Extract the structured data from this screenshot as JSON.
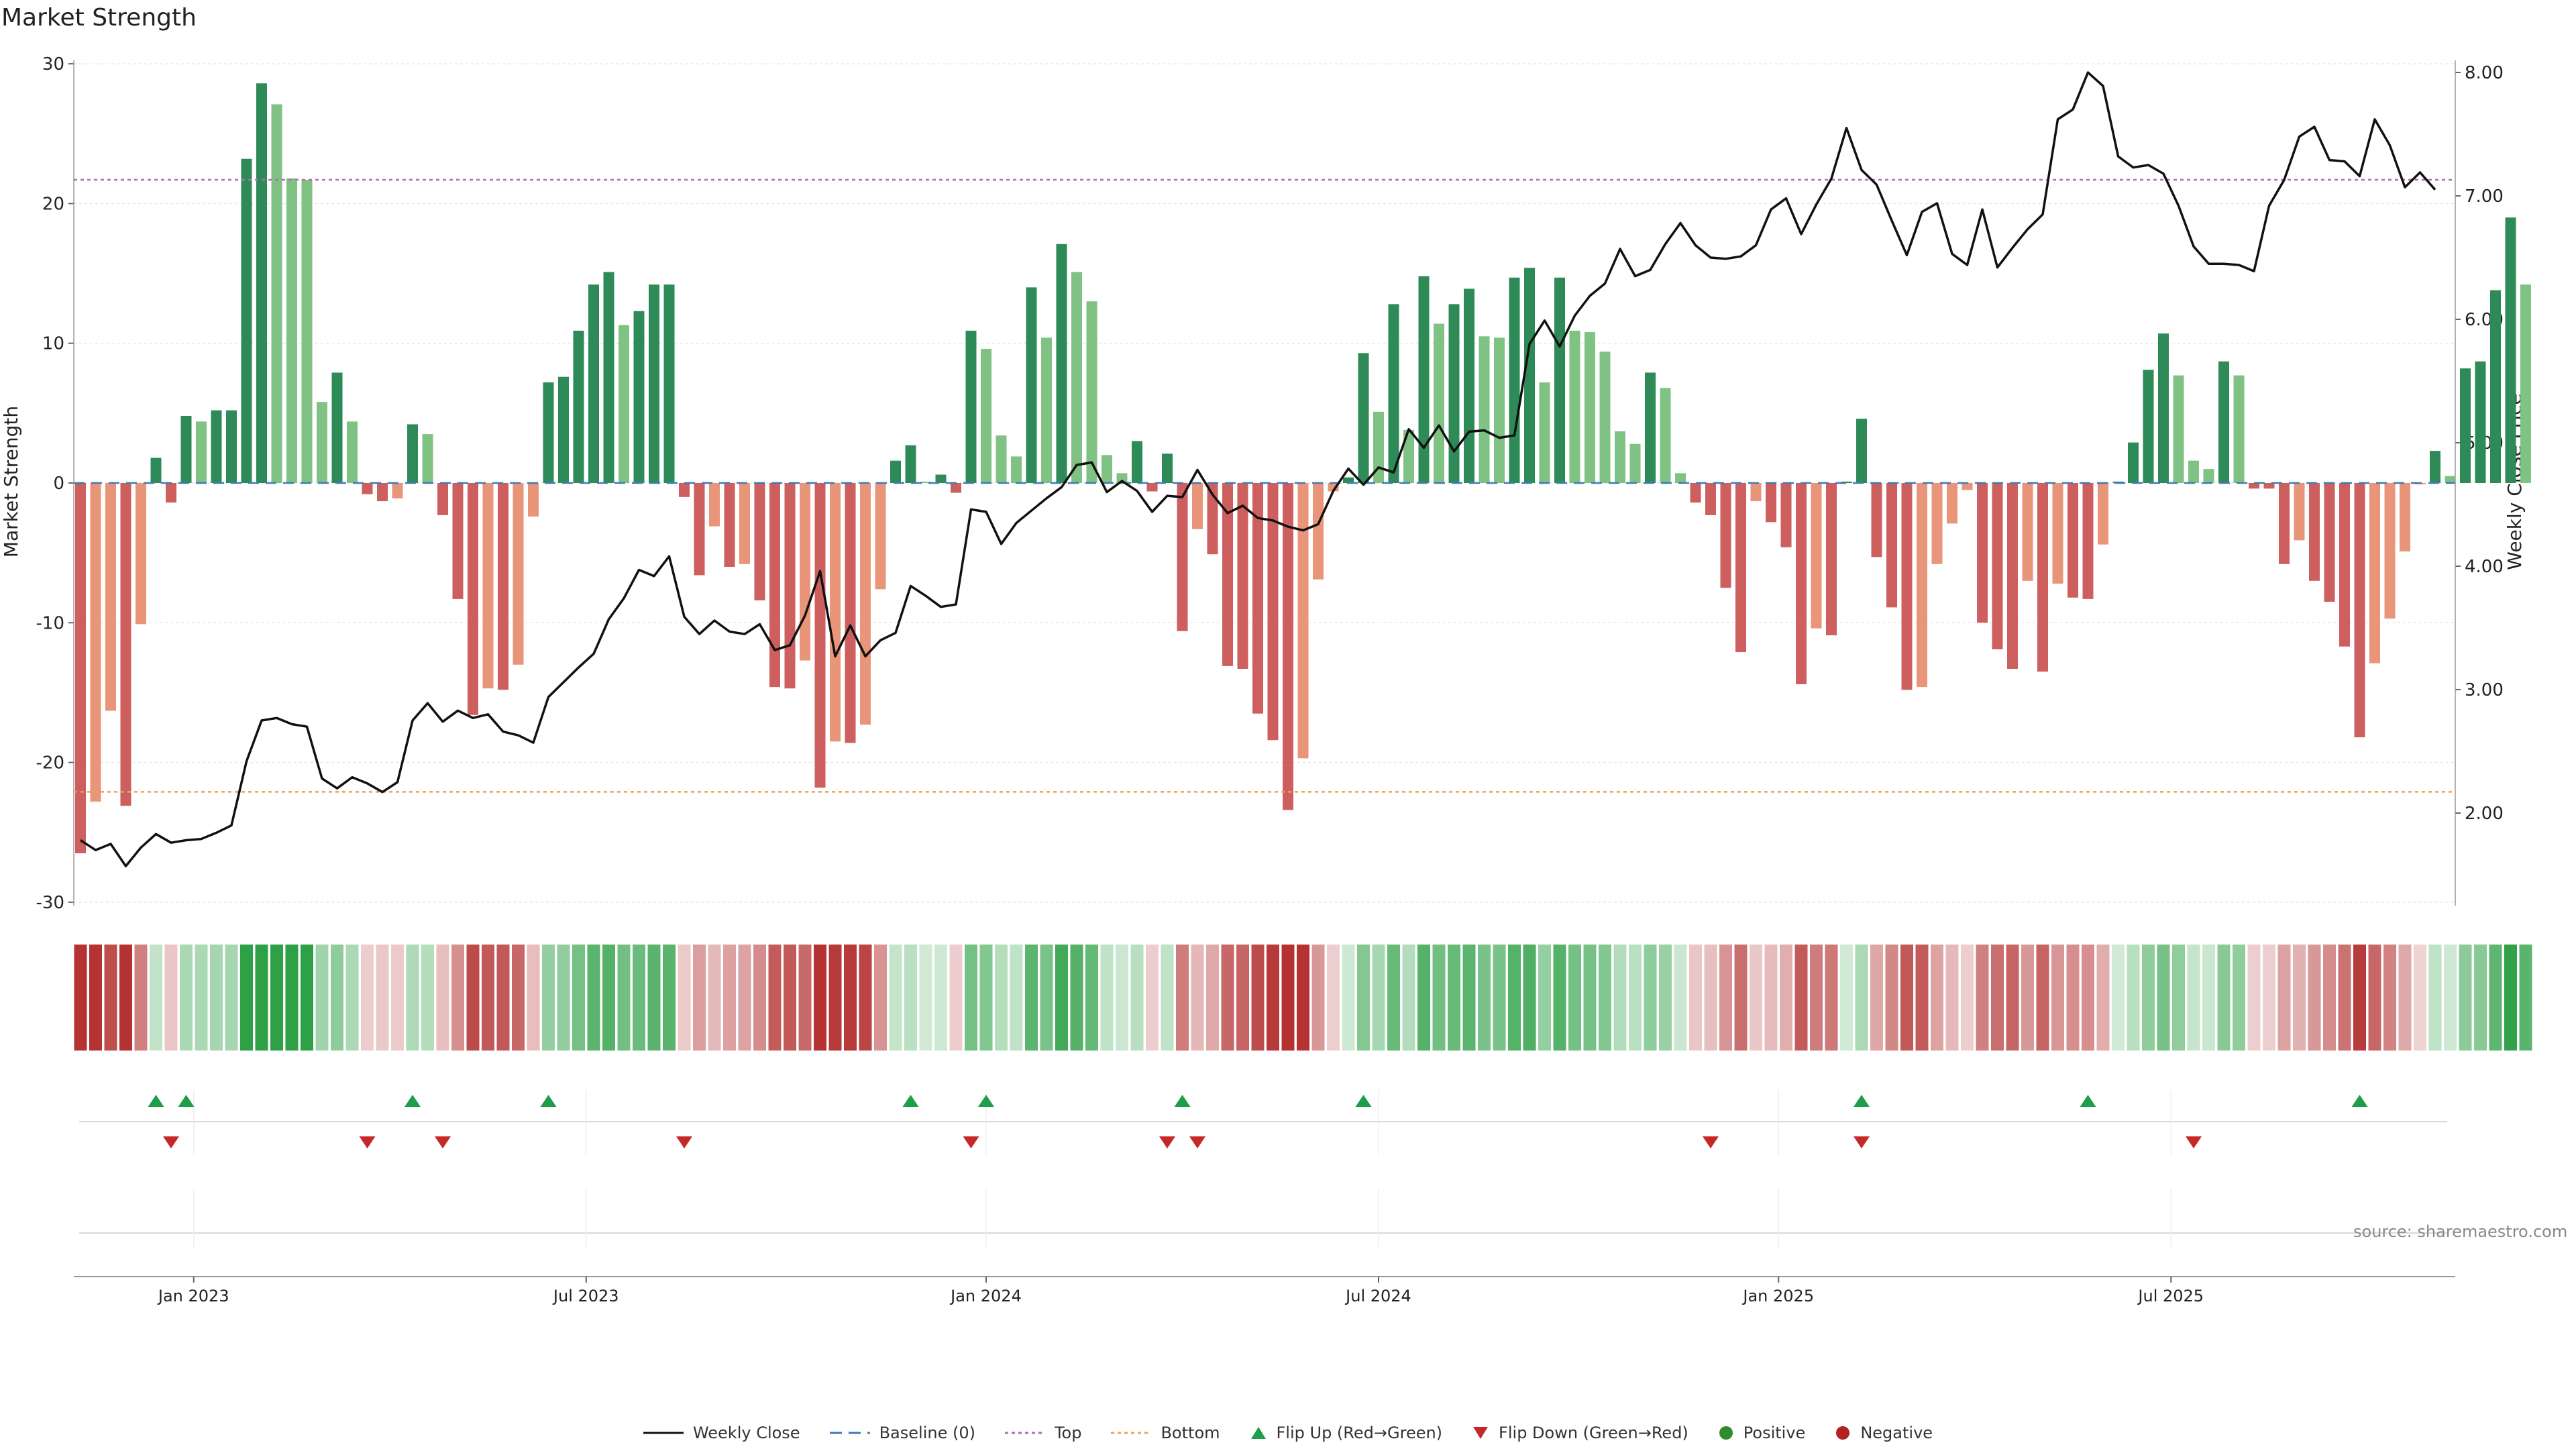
{
  "chart_data": {
    "title": "Market Strength",
    "type": "bar",
    "left_axis": {
      "label": "Market Strength",
      "ylim": [
        -30,
        30
      ],
      "ticks": [
        30,
        20,
        10,
        0,
        -10,
        -20,
        -30
      ]
    },
    "right_axis": {
      "label": "Weekly Close Price",
      "ylim": [
        1.0,
        8.0
      ],
      "ticks": [
        "8.00",
        "7.00",
        "6.00",
        "5.00",
        "4.00",
        "3.00",
        "2.00"
      ]
    },
    "x_ticks": [
      {
        "label": "Jan 2023",
        "week": 7.5
      },
      {
        "label": "Jul 2023",
        "week": 33.5
      },
      {
        "label": "Jan 2024",
        "week": 60
      },
      {
        "label": "Jul 2024",
        "week": 86
      },
      {
        "label": "Jan 2025",
        "week": 112.5
      },
      {
        "label": "Jul 2025",
        "week": 138.5
      }
    ],
    "reference_lines": {
      "top": 21.7,
      "bottom": -22.1,
      "baseline": 0
    },
    "strength": [
      -26.5,
      -22.8,
      -16.3,
      -23.1,
      -10.1,
      1.8,
      -1.4,
      4.8,
      4.4,
      5.2,
      5.2,
      23.2,
      28.6,
      27.1,
      21.8,
      21.7,
      5.8,
      7.9,
      4.4,
      -0.8,
      -1.3,
      -1.1,
      4.2,
      3.5,
      -2.3,
      -8.3,
      -16.6,
      -14.7,
      -14.8,
      -13.0,
      -2.4,
      7.2,
      7.6,
      10.9,
      14.2,
      15.1,
      11.3,
      12.3,
      14.2,
      14.2,
      -1.0,
      -6.6,
      -3.1,
      -6.0,
      -5.8,
      -8.4,
      -14.6,
      -14.7,
      -12.7,
      -21.8,
      -18.5,
      -18.6,
      -17.3,
      -7.6,
      1.6,
      2.7,
      0.1,
      0.6,
      -0.7,
      10.9,
      9.6,
      3.4,
      1.9,
      14.0,
      10.4,
      17.1,
      15.1,
      13.0,
      2.0,
      0.7,
      3.0,
      -0.6,
      2.1,
      -10.6,
      -3.3,
      -5.1,
      -13.1,
      -13.3,
      -16.5,
      -18.4,
      -23.4,
      -19.7,
      -6.9,
      -0.6,
      0.4,
      9.3,
      5.1,
      12.8,
      3.8,
      14.8,
      11.4,
      12.8,
      13.9,
      10.5,
      10.4,
      14.7,
      15.4,
      7.2,
      14.7,
      10.9,
      10.8,
      9.4,
      3.7,
      2.8,
      7.9,
      6.8,
      0.7,
      -1.4,
      -2.3,
      -7.5,
      -12.1,
      -1.3,
      -2.8,
      -4.6,
      -14.4,
      -10.4,
      -10.9,
      0.1,
      4.6,
      -5.3,
      -8.9,
      -14.8,
      -14.6,
      -5.8,
      -2.9,
      -0.5,
      -10.0,
      -11.9,
      -13.3,
      -7.0,
      -13.5,
      -7.2,
      -8.2,
      -8.3,
      -4.4,
      0.1,
      2.9,
      8.1,
      10.7,
      7.7,
      1.6,
      1.0,
      8.7,
      7.7,
      -0.4,
      -0.4,
      -5.8,
      -4.1,
      -7.0,
      -8.5,
      -11.7,
      -18.2,
      -12.9,
      -9.7,
      -4.9,
      -0.1,
      2.3,
      0.5,
      8.2,
      8.7,
      13.8,
      19.0,
      14.2
    ],
    "weekly_close": [
      1.78,
      1.7,
      1.75,
      1.57,
      1.72,
      1.83,
      1.76,
      1.78,
      1.79,
      1.84,
      1.9,
      2.42,
      2.75,
      2.77,
      2.72,
      2.7,
      2.28,
      2.2,
      2.29,
      2.24,
      2.17,
      2.25,
      2.75,
      2.89,
      2.74,
      2.83,
      2.77,
      2.8,
      2.66,
      2.63,
      2.57,
      2.94,
      3.06,
      3.18,
      3.29,
      3.57,
      3.74,
      3.97,
      3.92,
      4.08,
      3.59,
      3.45,
      3.56,
      3.47,
      3.45,
      3.53,
      3.32,
      3.36,
      3.6,
      3.96,
      3.27,
      3.52,
      3.27,
      3.4,
      3.46,
      3.84,
      3.76,
      3.67,
      3.69,
      4.46,
      4.44,
      4.18,
      4.35,
      4.45,
      4.55,
      4.64,
      4.82,
      4.84,
      4.6,
      4.69,
      4.61,
      4.44,
      4.57,
      4.56,
      4.78,
      4.58,
      4.43,
      4.49,
      4.39,
      4.37,
      4.32,
      4.29,
      4.34,
      4.61,
      4.79,
      4.66,
      4.8,
      4.76,
      5.11,
      4.96,
      5.14,
      4.93,
      5.09,
      5.1,
      5.04,
      5.06,
      5.8,
      5.99,
      5.78,
      6.03,
      6.19,
      6.29,
      6.57,
      6.35,
      6.4,
      6.61,
      6.78,
      6.6,
      6.5,
      6.49,
      6.51,
      6.6,
      6.89,
      6.98,
      6.69,
      6.93,
      7.14,
      7.55,
      7.21,
      7.09,
      6.8,
      6.52,
      6.87,
      6.94,
      6.53,
      6.44,
      6.89,
      6.42,
      6.58,
      6.73,
      6.85,
      7.62,
      7.7,
      8.0,
      7.89,
      7.32,
      7.23,
      7.25,
      7.18,
      6.92,
      6.59,
      6.45,
      6.45,
      6.44,
      6.39,
      6.92,
      7.13,
      7.48,
      7.56,
      7.29,
      7.28,
      7.16,
      7.62,
      7.41,
      7.07,
      7.19,
      7.05
    ],
    "flip_up_weeks": [
      5,
      7,
      22,
      31,
      55,
      60,
      73,
      85,
      118,
      133,
      151
    ],
    "flip_down_weeks": [
      6,
      19,
      24,
      40,
      59,
      72,
      74,
      108,
      118,
      140
    ],
    "legend": [
      "Weekly Close",
      "Baseline (0)",
      "Top",
      "Bottom",
      "Flip Up (Red→Green)",
      "Flip Down (Green→Red)",
      "Positive",
      "Negative"
    ],
    "source": "source: sharemaestro.com",
    "colors": {
      "pos_dark": "#2e8b57",
      "pos_light": "#7fc283",
      "neg_dark": "#cd5f5f",
      "neg_light": "#e8957a",
      "line": "#111111",
      "top": "#b36bb3",
      "bottom": "#f0a050",
      "baseline": "#3d7ab8",
      "up": "#1e9e4a",
      "down": "#c62828"
    }
  }
}
